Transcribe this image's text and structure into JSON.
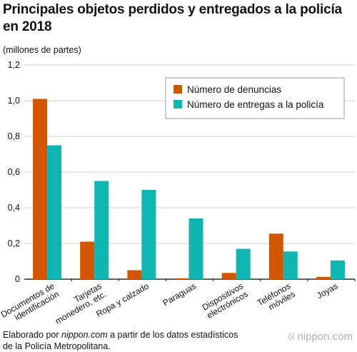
{
  "title": "Principales objetos perdidos y entregados a la policía en 2018",
  "units_label": "(millones de partes)",
  "footer": {
    "prefix": "Elaborado por ",
    "source_name": "nippon.com",
    "suffix": " a partir de los datos estadísticos",
    "line2": "de la Policía Metropolitana."
  },
  "logo": {
    "mark": "⟨⟩⟨",
    "text": "nippon.com"
  },
  "colors": {
    "denuncias": "#d45500",
    "entregas": "#0fb5b0",
    "grid": "#cfcfcf",
    "axis": "#000000"
  },
  "chart_data": {
    "type": "bar",
    "categories": [
      [
        "Documentos de",
        "identificación"
      ],
      [
        "Tarjetas",
        "monedero, etc."
      ],
      [
        "Ropa y calzado"
      ],
      [
        "Paraguas"
      ],
      [
        "Dispositivos",
        "electrónicos"
      ],
      [
        "Teléfonos",
        "móviles"
      ],
      [
        "Joyas"
      ]
    ],
    "series": [
      {
        "name": "Número de denuncias",
        "color": "#d45500",
        "values": [
          1.01,
          0.21,
          0.05,
          0.005,
          0.035,
          0.255,
          0.013
        ]
      },
      {
        "name": "Número de entregas a la policía",
        "color": "#0fb5b0",
        "values": [
          0.75,
          0.55,
          0.5,
          0.34,
          0.17,
          0.155,
          0.105
        ]
      }
    ],
    "ylim": [
      0,
      1.2
    ],
    "yticks": [
      "0",
      "0,2",
      "0,4",
      "0,6",
      "0,8",
      "1,0",
      "1,2"
    ],
    "ylabel": "(millones de partes)",
    "grid": true,
    "legend": "top-right"
  }
}
